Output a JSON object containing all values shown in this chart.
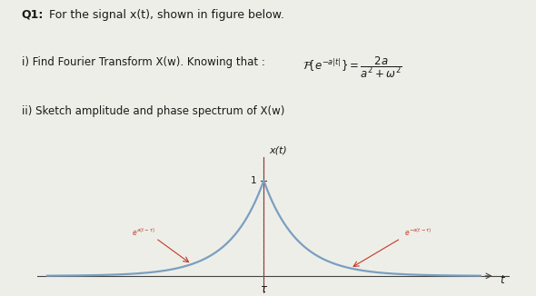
{
  "bg_color": "#eeeee8",
  "line_color": "#7a9fc0",
  "annotation_color": "#c0392b",
  "axis_color": "#444444",
  "text_color": "#1a1a1a",
  "title_bold": "Q1:",
  "title_rest": " For the signal x(t), shown in figure below.",
  "line1_text": "i) Find Fourier Transform X(w). Knowing that : ",
  "line2_text": "ii) Sketch amplitude and phase spectrum of X(w)",
  "xlabel": "t",
  "ylabel": "x(t)",
  "tau_label": "τ",
  "y1_label": "1",
  "tau": 0.0,
  "a": 1.4,
  "x_range": [
    -4.5,
    4.5
  ],
  "y_range": [
    -0.18,
    1.25
  ],
  "figsize": [
    5.9,
    3.26
  ],
  "dpi": 100
}
